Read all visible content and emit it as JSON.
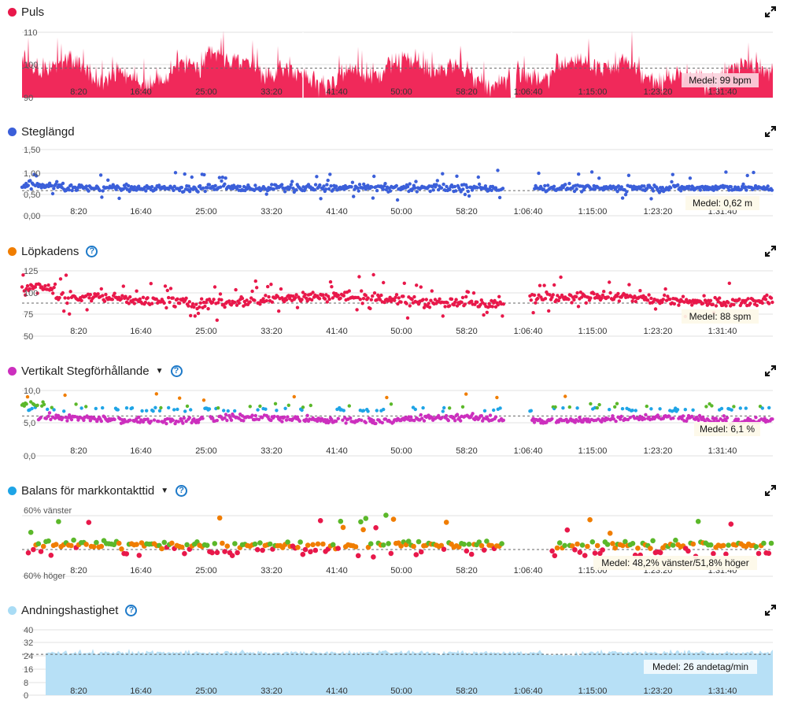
{
  "panels": [
    {
      "title": "Puls",
      "dot_color": "#e8184a",
      "has_caret": false,
      "has_help": false,
      "y_ticks": [
        "110",
        "100",
        "90"
      ],
      "x_ticks": [
        "8:20",
        "16:40",
        "25:00",
        "33:20",
        "41:40",
        "50:00",
        "58:20",
        "1:06:40",
        "1:15:00",
        "1:23:20",
        "1:31:40"
      ],
      "avg_label": "Medel: 99 bpm"
    },
    {
      "title": "Steglängd",
      "dot_color": "#3b5fd9",
      "has_caret": false,
      "has_help": false,
      "y_ticks": [
        "1,50",
        "1,00",
        "0,50",
        "0,00"
      ],
      "x_ticks": [
        "8:20",
        "16:40",
        "25:00",
        "33:20",
        "41:40",
        "50:00",
        "58:20",
        "1:06:40",
        "1:15:00",
        "1:23:20",
        "1:31:40"
      ],
      "avg_label": "Medel: 0,62 m"
    },
    {
      "title": "Löpkadens",
      "dot_color": "#f07d00",
      "has_caret": false,
      "has_help": true,
      "y_ticks": [
        "125",
        "100",
        "75",
        "50"
      ],
      "x_ticks": [
        "8:20",
        "16:40",
        "25:00",
        "33:20",
        "41:40",
        "50:00",
        "58:20",
        "1:06:40",
        "1:15:00",
        "1:23:20",
        "1:31:40"
      ],
      "avg_label": "Medel: 88 spm"
    },
    {
      "title": "Vertikalt Stegförhållande",
      "dot_color": "#cc2fbe",
      "has_caret": true,
      "has_help": true,
      "y_ticks": [
        "10,0",
        "5,0",
        "0,0"
      ],
      "x_ticks": [
        "8:20",
        "16:40",
        "25:00",
        "33:20",
        "41:40",
        "50:00",
        "58:20",
        "1:06:40",
        "1:15:00",
        "1:23:20",
        "1:31:40"
      ],
      "avg_label": "Medel: 6,1 %"
    },
    {
      "title": "Balans för markkontakttid",
      "dot_color": "#1ea4e6",
      "has_caret": true,
      "has_help": true,
      "y_ticks": [
        "60% vänster",
        "60% höger"
      ],
      "x_ticks": [
        "8:20",
        "16:40",
        "25:00",
        "33:20",
        "41:40",
        "50:00",
        "58:20",
        "1:06:40",
        "1:15:00",
        "1:23:20",
        "1:31:40"
      ],
      "avg_label": "Medel: 48,2% vänster/51,8% höger"
    },
    {
      "title": "Andningshastighet",
      "dot_color": "#a9dcf5",
      "has_caret": false,
      "has_help": true,
      "y_ticks": [
        "40",
        "32",
        "24",
        "16",
        "8",
        "0"
      ],
      "x_ticks": [
        "8:20",
        "16:40",
        "25:00",
        "33:20",
        "41:40",
        "50:00",
        "58:20",
        "1:06:40",
        "1:15:00",
        "1:23:20",
        "1:31:40"
      ],
      "avg_label": "Medel: 26 andetag/min"
    }
  ],
  "chart_data": [
    {
      "type": "area",
      "title": "Puls",
      "ylim": [
        90,
        110
      ],
      "average": 99,
      "unit": "bpm",
      "color": "#f0295a",
      "x_ticks": [
        "8:20",
        "16:40",
        "25:00",
        "33:20",
        "41:40",
        "50:00",
        "58:20",
        "1:06:40",
        "1:15:00",
        "1:23:20",
        "1:31:40"
      ],
      "y_ticks": [
        110,
        100,
        90
      ]
    },
    {
      "type": "scatter",
      "title": "Steglängd",
      "ylim": [
        0,
        1.5
      ],
      "average": 0.62,
      "unit": "m",
      "color": "#3b5fd9",
      "x_ticks": [
        "8:20",
        "16:40",
        "25:00",
        "33:20",
        "41:40",
        "50:00",
        "58:20",
        "1:06:40",
        "1:15:00",
        "1:23:20",
        "1:31:40"
      ],
      "y_ticks": [
        1.5,
        1.0,
        0.5,
        0.0
      ]
    },
    {
      "type": "scatter",
      "title": "Löpkadens",
      "ylim": [
        50,
        125
      ],
      "average": 88,
      "unit": "spm",
      "color": "#e8184a",
      "x_ticks": [
        "8:20",
        "16:40",
        "25:00",
        "33:20",
        "41:40",
        "50:00",
        "58:20",
        "1:06:40",
        "1:15:00",
        "1:23:20",
        "1:31:40"
      ],
      "y_ticks": [
        125,
        100,
        75,
        50
      ]
    },
    {
      "type": "scatter",
      "title": "Vertikalt Stegförhållande",
      "ylim": [
        0,
        10
      ],
      "average": 6.1,
      "unit": "%",
      "colors": [
        "#cc2fbe",
        "#1ea4e6",
        "#5bb82a",
        "#f07d00"
      ],
      "x_ticks": [
        "8:20",
        "16:40",
        "25:00",
        "33:20",
        "41:40",
        "50:00",
        "58:20",
        "1:06:40",
        "1:15:00",
        "1:23:20",
        "1:31:40"
      ],
      "y_ticks": [
        10,
        5,
        0
      ]
    },
    {
      "type": "scatter",
      "title": "Balans för markkontakttid",
      "average_left_pct": 48.2,
      "average_right_pct": 51.8,
      "colors": [
        "#e8184a",
        "#f07d00",
        "#5bb82a"
      ],
      "x_ticks": [
        "8:20",
        "16:40",
        "25:00",
        "33:20",
        "41:40",
        "50:00",
        "58:20",
        "1:06:40",
        "1:15:00",
        "1:23:20",
        "1:31:40"
      ]
    },
    {
      "type": "area",
      "title": "Andningshastighet",
      "ylim": [
        0,
        40
      ],
      "average": 26,
      "unit": "andetag/min",
      "color": "#b7e0f6",
      "x_ticks": [
        "8:20",
        "16:40",
        "25:00",
        "33:20",
        "41:40",
        "50:00",
        "58:20",
        "1:06:40",
        "1:15:00",
        "1:23:20",
        "1:31:40"
      ],
      "y_ticks": [
        40,
        32,
        24,
        16,
        8,
        0
      ]
    }
  ]
}
